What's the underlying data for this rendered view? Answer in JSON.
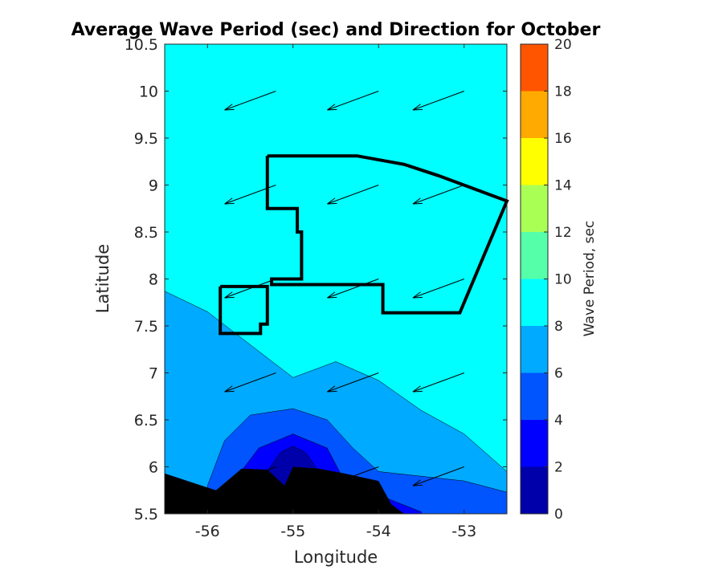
{
  "chart_data": {
    "type": "contour",
    "title": "Average Wave Period (sec) and Direction for October",
    "xlabel": "Longitude",
    "ylabel": "Latitude",
    "xlim": [
      -56.5,
      -52.5
    ],
    "ylim": [
      5.5,
      10.5
    ],
    "xticks": [
      -56,
      -55,
      -54,
      -53
    ],
    "yticks": [
      5.5,
      6,
      6.5,
      7,
      7.5,
      8,
      8.5,
      9,
      9.5,
      10,
      10.5
    ],
    "colorbar": {
      "label": "Wave Period, sec",
      "ticks": [
        0,
        2,
        4,
        6,
        8,
        10,
        12,
        14,
        16,
        18,
        20
      ],
      "levels": [
        {
          "range": [
            0,
            2
          ],
          "color": "#0000aa"
        },
        {
          "range": [
            2,
            4
          ],
          "color": "#0000ff"
        },
        {
          "range": [
            4,
            6
          ],
          "color": "#0055ff"
        },
        {
          "range": [
            6,
            8
          ],
          "color": "#00aaff"
        },
        {
          "range": [
            8,
            10
          ],
          "color": "#00ffff"
        },
        {
          "range": [
            10,
            12
          ],
          "color": "#55ffaa"
        },
        {
          "range": [
            12,
            14
          ],
          "color": "#aaff55"
        },
        {
          "range": [
            14,
            16
          ],
          "color": "#ffff00"
        },
        {
          "range": [
            16,
            18
          ],
          "color": "#ffaa00"
        },
        {
          "range": [
            18,
            20
          ],
          "color": "#ff5500"
        }
      ]
    },
    "contour_regions": [
      {
        "level": 6,
        "color": "#00aaff",
        "boundary": [
          [
            -56.5,
            7.87
          ],
          [
            -56.0,
            7.65
          ],
          [
            -55.5,
            7.3
          ],
          [
            -55.0,
            6.95
          ],
          [
            -54.5,
            7.12
          ],
          [
            -54.0,
            6.92
          ],
          [
            -53.5,
            6.6
          ],
          [
            -53.0,
            6.35
          ],
          [
            -52.5,
            5.95
          ],
          [
            -52.5,
            5.5
          ],
          [
            -56.5,
            5.5
          ]
        ]
      },
      {
        "level": 4,
        "color": "#0055ff",
        "boundary": [
          [
            -56.0,
            5.8
          ],
          [
            -55.8,
            6.28
          ],
          [
            -55.5,
            6.55
          ],
          [
            -55.0,
            6.62
          ],
          [
            -54.6,
            6.5
          ],
          [
            -54.3,
            6.2
          ],
          [
            -54.0,
            5.95
          ],
          [
            -53.0,
            5.85
          ],
          [
            -52.5,
            5.73
          ],
          [
            -52.5,
            5.5
          ],
          [
            -56.0,
            5.5
          ]
        ]
      },
      {
        "level": 2,
        "color": "#0000ff",
        "boundary": [
          [
            -55.65,
            5.9
          ],
          [
            -55.4,
            6.2
          ],
          [
            -55.0,
            6.35
          ],
          [
            -54.6,
            6.2
          ],
          [
            -54.4,
            5.85
          ],
          [
            -54.0,
            5.7
          ],
          [
            -53.5,
            5.52
          ],
          [
            -53.5,
            5.5
          ],
          [
            -55.65,
            5.5
          ]
        ]
      },
      {
        "level": 0,
        "color": "#0000aa",
        "boundary": [
          [
            -55.3,
            5.95
          ],
          [
            -55.15,
            6.15
          ],
          [
            -55.0,
            6.22
          ],
          [
            -54.85,
            6.15
          ],
          [
            -54.7,
            5.95
          ],
          [
            -54.7,
            5.5
          ],
          [
            -55.3,
            5.5
          ]
        ]
      }
    ],
    "land_mask": {
      "color": "#000000",
      "boundary": [
        [
          -56.5,
          5.93
        ],
        [
          -55.9,
          5.75
        ],
        [
          -55.6,
          5.98
        ],
        [
          -55.3,
          5.97
        ],
        [
          -55.1,
          5.8
        ],
        [
          -55.0,
          6.0
        ],
        [
          -54.7,
          5.98
        ],
        [
          -54.4,
          5.93
        ],
        [
          -54.0,
          5.85
        ],
        [
          -53.85,
          5.6
        ],
        [
          -53.7,
          5.5
        ],
        [
          -56.5,
          5.5
        ]
      ]
    },
    "wave_direction_arrows": {
      "color": "#000000",
      "positions": [
        [
          -56.5,
          10.0
        ],
        [
          -55.2,
          10.0
        ],
        [
          -54.0,
          10.0
        ],
        [
          -53.0,
          10.0
        ],
        [
          -56.5,
          9.0
        ],
        [
          -55.2,
          9.0
        ],
        [
          -54.0,
          9.0
        ],
        [
          -53.0,
          9.0
        ],
        [
          -56.5,
          8.0
        ],
        [
          -55.2,
          8.0
        ],
        [
          -54.0,
          8.0
        ],
        [
          -53.0,
          8.0
        ],
        [
          -56.5,
          7.0
        ],
        [
          -55.2,
          7.0
        ],
        [
          -54.0,
          7.0
        ],
        [
          -53.0,
          7.0
        ],
        [
          -56.5,
          6.0
        ],
        [
          -55.2,
          6.0
        ],
        [
          -54.0,
          6.0
        ],
        [
          -53.0,
          6.0
        ]
      ],
      "direction": [
        -0.95,
        -0.35
      ]
    },
    "boundary_polygon": {
      "color": "#000000",
      "points": [
        [
          -55.3,
          9.31
        ],
        [
          -54.25,
          9.31
        ],
        [
          -53.7,
          9.22
        ],
        [
          -53.3,
          9.1
        ],
        [
          -52.5,
          8.83
        ],
        [
          -53.05,
          7.64
        ],
        [
          -53.95,
          7.64
        ],
        [
          -53.95,
          7.94
        ],
        [
          -55.25,
          7.94
        ],
        [
          -55.25,
          8.0
        ],
        [
          -54.9,
          8.0
        ],
        [
          -54.9,
          8.5
        ],
        [
          -54.95,
          8.5
        ],
        [
          -54.95,
          8.75
        ],
        [
          -55.3,
          8.75
        ],
        [
          -55.3,
          9.31
        ]
      ]
    },
    "boundary_polygon_2": {
      "color": "#000000",
      "points": [
        [
          -55.85,
          7.92
        ],
        [
          -55.3,
          7.92
        ],
        [
          -55.3,
          7.52
        ],
        [
          -55.38,
          7.52
        ],
        [
          -55.38,
          7.42
        ],
        [
          -55.85,
          7.42
        ],
        [
          -55.85,
          7.92
        ]
      ]
    }
  }
}
